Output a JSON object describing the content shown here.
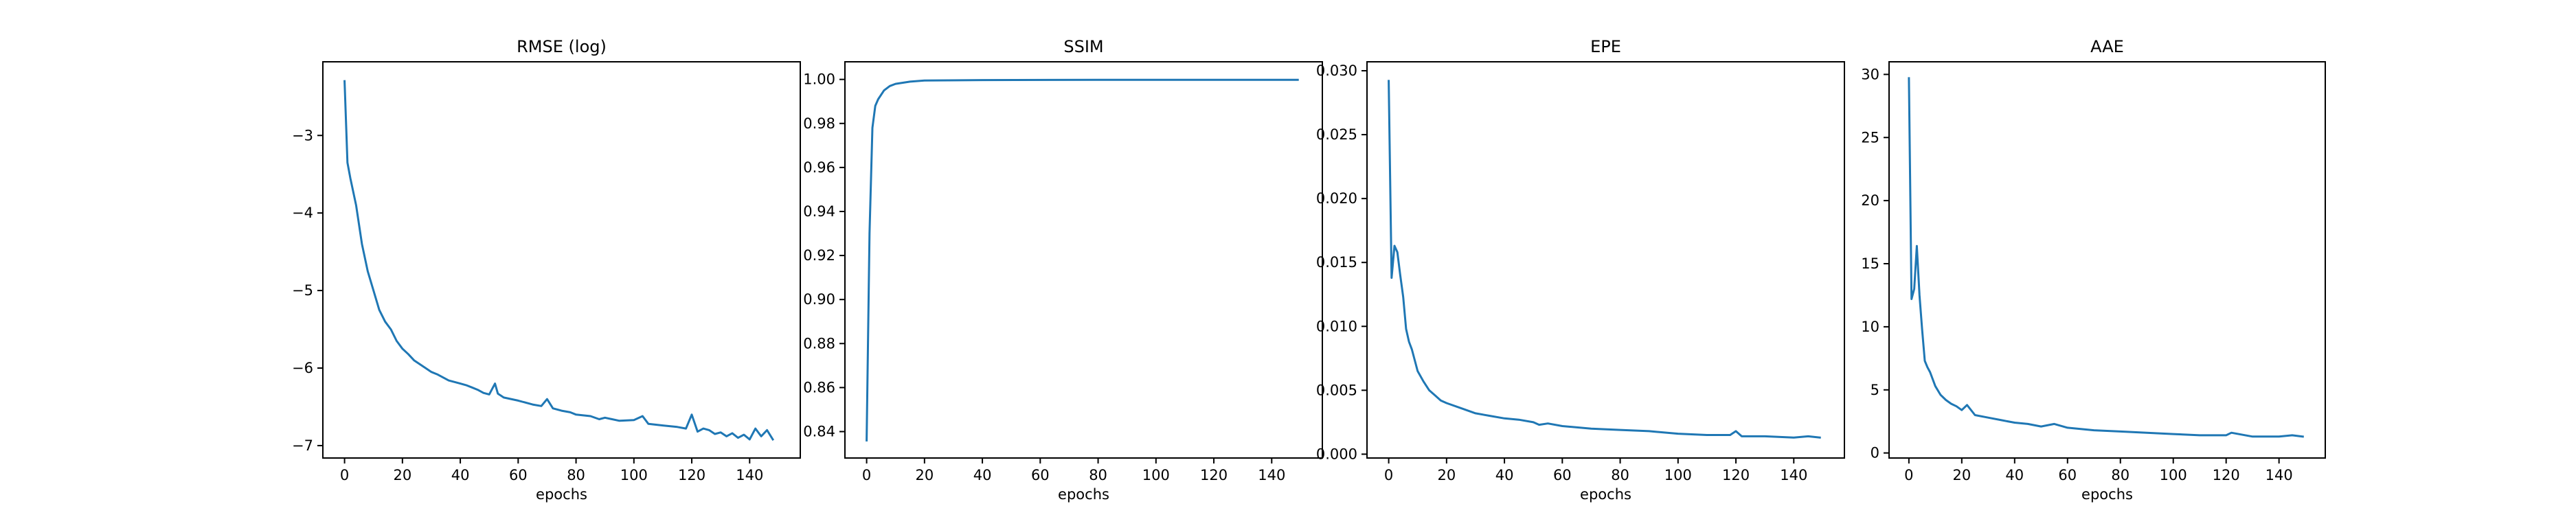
{
  "chart_data": [
    {
      "type": "line",
      "title": "RMSE (log)",
      "xlabel": "epochs",
      "ylabel": "",
      "xlim": [
        -7.5,
        157.5
      ],
      "ylim": [
        -7.16,
        -2.05
      ],
      "xticks": [
        0,
        20,
        40,
        60,
        80,
        100,
        120,
        140
      ],
      "yticks": [
        -7,
        -6,
        -5,
        -4,
        -3
      ],
      "ytick_labels": [
        "−7",
        "−6",
        "−5",
        "−4",
        "−3"
      ],
      "grid": false,
      "series": [
        {
          "color": "#1f77b4",
          "x": [
            0,
            1,
            2,
            4,
            6,
            8,
            10,
            12,
            14,
            16,
            18,
            20,
            22,
            24,
            26,
            28,
            30,
            32,
            34,
            36,
            38,
            40,
            42,
            44,
            46,
            48,
            50,
            52,
            53,
            55,
            60,
            65,
            68,
            70,
            72,
            75,
            78,
            80,
            85,
            88,
            90,
            95,
            100,
            103,
            105,
            110,
            115,
            118,
            120,
            122,
            124,
            126,
            128,
            130,
            132,
            134,
            136,
            138,
            140,
            142,
            144,
            146,
            148
          ],
          "y": [
            -2.3,
            -3.35,
            -3.55,
            -3.9,
            -4.4,
            -4.75,
            -5.0,
            -5.25,
            -5.4,
            -5.5,
            -5.65,
            -5.75,
            -5.82,
            -5.9,
            -5.95,
            -6.0,
            -6.05,
            -6.08,
            -6.12,
            -6.16,
            -6.18,
            -6.2,
            -6.22,
            -6.25,
            -6.28,
            -6.32,
            -6.34,
            -6.2,
            -6.33,
            -6.38,
            -6.42,
            -6.47,
            -6.49,
            -6.4,
            -6.52,
            -6.55,
            -6.57,
            -6.6,
            -6.62,
            -6.66,
            -6.64,
            -6.68,
            -6.67,
            -6.62,
            -6.72,
            -6.74,
            -6.76,
            -6.78,
            -6.6,
            -6.82,
            -6.78,
            -6.8,
            -6.85,
            -6.83,
            -6.88,
            -6.84,
            -6.9,
            -6.86,
            -6.92,
            -6.78,
            -6.88,
            -6.8,
            -6.92
          ]
        }
      ]
    },
    {
      "type": "line",
      "title": "SSIM",
      "xlabel": "epochs",
      "ylabel": "",
      "xlim": [
        -7.5,
        157.5
      ],
      "ylim": [
        0.828,
        1.008
      ],
      "xticks": [
        0,
        20,
        40,
        60,
        80,
        100,
        120,
        140
      ],
      "yticks": [
        0.84,
        0.86,
        0.88,
        0.9,
        0.92,
        0.94,
        0.96,
        0.98,
        1.0
      ],
      "ytick_labels": [
        "0.84",
        "0.86",
        "0.88",
        "0.90",
        "0.92",
        "0.94",
        "0.96",
        "0.98",
        "1.00"
      ],
      "grid": false,
      "series": [
        {
          "color": "#1f77b4",
          "x": [
            0,
            1,
            2,
            3,
            4,
            6,
            8,
            10,
            15,
            20,
            40,
            80,
            149
          ],
          "y": [
            0.836,
            0.93,
            0.978,
            0.988,
            0.991,
            0.995,
            0.997,
            0.998,
            0.999,
            0.9995,
            0.9997,
            0.9998,
            0.9998
          ]
        }
      ]
    },
    {
      "type": "line",
      "title": "EPE",
      "xlabel": "epochs",
      "ylabel": "",
      "xlim": [
        -7.5,
        157.5
      ],
      "ylim": [
        -0.0003,
        0.0307
      ],
      "xticks": [
        0,
        20,
        40,
        60,
        80,
        100,
        120,
        140
      ],
      "yticks": [
        0,
        0.005,
        0.01,
        0.015,
        0.02,
        0.025,
        0.03
      ],
      "ytick_labels": [
        "0.000",
        "0.005",
        "0.010",
        "0.015",
        "0.020",
        "0.025",
        "0.030"
      ],
      "grid": false,
      "series": [
        {
          "color": "#1f77b4",
          "x": [
            0,
            1,
            2,
            3,
            4,
            5,
            6,
            7,
            8,
            10,
            12,
            14,
            16,
            18,
            20,
            25,
            30,
            35,
            40,
            45,
            50,
            52,
            55,
            60,
            70,
            80,
            90,
            100,
            110,
            118,
            120,
            122,
            130,
            140,
            145,
            149
          ],
          "y": [
            0.0292,
            0.0138,
            0.0163,
            0.0158,
            0.014,
            0.0123,
            0.0098,
            0.0088,
            0.0082,
            0.0065,
            0.0057,
            0.005,
            0.0046,
            0.0042,
            0.004,
            0.0036,
            0.0032,
            0.003,
            0.0028,
            0.0027,
            0.0025,
            0.0023,
            0.0024,
            0.0022,
            0.002,
            0.0019,
            0.0018,
            0.0016,
            0.0015,
            0.0015,
            0.0018,
            0.0014,
            0.0014,
            0.0013,
            0.0014,
            0.0013
          ]
        }
      ]
    },
    {
      "type": "line",
      "title": "AAE",
      "xlabel": "epochs",
      "ylabel": "",
      "xlim": [
        -7.5,
        157.5
      ],
      "ylim": [
        -0.4,
        31.0
      ],
      "xticks": [
        0,
        20,
        40,
        60,
        80,
        100,
        120,
        140
      ],
      "yticks": [
        0,
        5,
        10,
        15,
        20,
        25,
        30
      ],
      "ytick_labels": [
        "0",
        "5",
        "10",
        "15",
        "20",
        "25",
        "30"
      ],
      "grid": false,
      "series": [
        {
          "color": "#1f77b4",
          "x": [
            0,
            1,
            2,
            3,
            4,
            5,
            6,
            7,
            8,
            10,
            12,
            14,
            16,
            18,
            20,
            22,
            25,
            30,
            35,
            40,
            45,
            50,
            55,
            60,
            70,
            80,
            90,
            100,
            110,
            120,
            122,
            130,
            140,
            145,
            149
          ],
          "y": [
            29.7,
            12.2,
            13.0,
            16.4,
            12.5,
            9.8,
            7.3,
            6.8,
            6.4,
            5.3,
            4.6,
            4.2,
            3.9,
            3.7,
            3.4,
            3.8,
            3.0,
            2.8,
            2.6,
            2.4,
            2.3,
            2.1,
            2.3,
            2.0,
            1.8,
            1.7,
            1.6,
            1.5,
            1.4,
            1.4,
            1.6,
            1.3,
            1.3,
            1.4,
            1.3
          ]
        }
      ]
    }
  ]
}
